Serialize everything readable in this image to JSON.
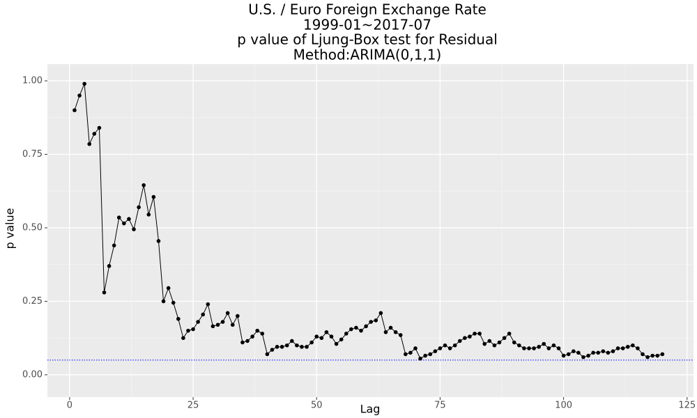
{
  "chart_data": {
    "type": "line",
    "title": [
      "U.S. / Euro Foreign Exchange Rate",
      "1999-01~2017-07",
      "p value of Ljung-Box test for Residual",
      "Method:ARIMA(0,1,1)"
    ],
    "x_label": "Lag",
    "y_label": "p value",
    "x": [
      1,
      2,
      3,
      4,
      5,
      6,
      7,
      8,
      9,
      10,
      11,
      12,
      13,
      14,
      15,
      16,
      17,
      18,
      19,
      20,
      21,
      22,
      23,
      24,
      25,
      26,
      27,
      28,
      29,
      30,
      31,
      32,
      33,
      34,
      35,
      36,
      37,
      38,
      39,
      40,
      41,
      42,
      43,
      44,
      45,
      46,
      47,
      48,
      49,
      50,
      51,
      52,
      53,
      54,
      55,
      56,
      57,
      58,
      59,
      60,
      61,
      62,
      63,
      64,
      65,
      66,
      67,
      68,
      69,
      70,
      71,
      72,
      73,
      74,
      75,
      76,
      77,
      78,
      79,
      80,
      81,
      82,
      83,
      84,
      85,
      86,
      87,
      88,
      89,
      90,
      91,
      92,
      93,
      94,
      95,
      96,
      97,
      98,
      99,
      100,
      101,
      102,
      103,
      104,
      105,
      106,
      107,
      108,
      109,
      110,
      111,
      112,
      113,
      114,
      115,
      116,
      117,
      118,
      119,
      120
    ],
    "values": [
      0.9,
      0.95,
      0.99,
      0.785,
      0.82,
      0.84,
      0.28,
      0.37,
      0.44,
      0.535,
      0.515,
      0.53,
      0.495,
      0.57,
      0.645,
      0.545,
      0.605,
      0.455,
      0.25,
      0.295,
      0.245,
      0.19,
      0.125,
      0.15,
      0.155,
      0.18,
      0.205,
      0.24,
      0.165,
      0.17,
      0.18,
      0.21,
      0.17,
      0.2,
      0.11,
      0.115,
      0.13,
      0.15,
      0.14,
      0.07,
      0.085,
      0.095,
      0.095,
      0.1,
      0.115,
      0.1,
      0.095,
      0.095,
      0.11,
      0.13,
      0.125,
      0.145,
      0.13,
      0.105,
      0.12,
      0.14,
      0.155,
      0.16,
      0.15,
      0.165,
      0.18,
      0.185,
      0.21,
      0.145,
      0.16,
      0.145,
      0.135,
      0.07,
      0.075,
      0.09,
      0.055,
      0.065,
      0.07,
      0.08,
      0.09,
      0.1,
      0.09,
      0.1,
      0.115,
      0.125,
      0.13,
      0.14,
      0.14,
      0.105,
      0.115,
      0.1,
      0.11,
      0.125,
      0.14,
      0.11,
      0.1,
      0.09,
      0.09,
      0.09,
      0.095,
      0.105,
      0.09,
      0.1,
      0.09,
      0.065,
      0.07,
      0.08,
      0.075,
      0.06,
      0.065,
      0.075,
      0.075,
      0.08,
      0.075,
      0.08,
      0.09,
      0.09,
      0.095,
      0.1,
      0.09,
      0.07,
      0.06,
      0.065,
      0.065,
      0.07
    ],
    "color": "#000000",
    "reference_line": {
      "value": 0.05,
      "color": "#0000ff"
    },
    "xlim": [
      -4.5,
      126.3
    ],
    "ylim": [
      -0.076,
      1.057
    ],
    "xticks": [
      0,
      25,
      50,
      75,
      100,
      125
    ],
    "yticks": [
      {
        "value": 0,
        "label": "0.00"
      },
      {
        "value": 0.25,
        "label": "0.25"
      },
      {
        "value": 0.5,
        "label": "0.50"
      },
      {
        "value": 0.75,
        "label": "0.75"
      },
      {
        "value": 1,
        "label": "1.00"
      }
    ],
    "grid": true
  }
}
